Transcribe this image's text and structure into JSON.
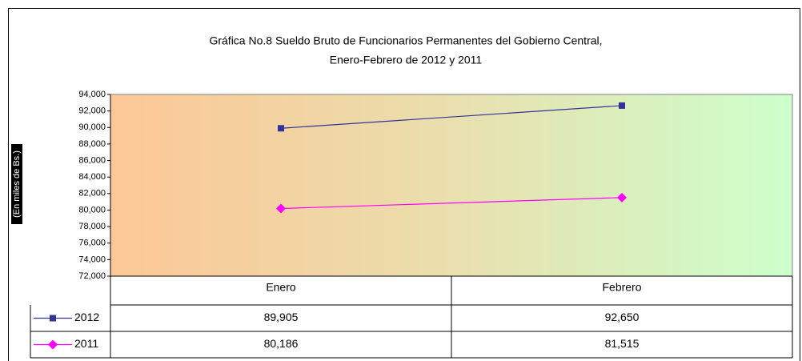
{
  "chart_data": {
    "type": "line",
    "title": [
      "Gráfica No.8 Sueldo Bruto de Funcionarios Permanentes del Gobierno Central,",
      "Enero-Febrero de 2012 y 2011"
    ],
    "y_label": "(En miles de Bs.)",
    "categories": [
      "Enero",
      "Febrero"
    ],
    "series": [
      {
        "name": "2012",
        "color": "#333399",
        "marker": "square",
        "values": [
          89905,
          92650
        ],
        "value_labels": [
          "89,905",
          "92,650"
        ]
      },
      {
        "name": "2011",
        "color": "#ff00ff",
        "marker": "diamond",
        "values": [
          80186,
          81515
        ],
        "value_labels": [
          "80,186",
          "81,515"
        ]
      }
    ],
    "ylim": [
      72000,
      94000
    ],
    "yticks": [
      {
        "value": 72000,
        "label": "72,000"
      },
      {
        "value": 74000,
        "label": "74,000"
      },
      {
        "value": 76000,
        "label": "76,000"
      },
      {
        "value": 78000,
        "label": "78,000"
      },
      {
        "value": 80000,
        "label": "80,000"
      },
      {
        "value": 82000,
        "label": "82,000"
      },
      {
        "value": 84000,
        "label": "84,000"
      },
      {
        "value": 86000,
        "label": "86,000"
      },
      {
        "value": 88000,
        "label": "88,000"
      },
      {
        "value": 90000,
        "label": "90,000"
      },
      {
        "value": 92000,
        "label": "92,000"
      },
      {
        "value": 94000,
        "label": "94,000"
      }
    ]
  }
}
